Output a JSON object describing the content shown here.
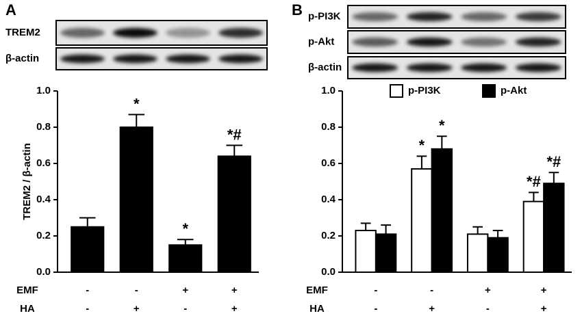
{
  "panels": [
    {
      "label": "A",
      "blots": [
        "TREM2",
        "β-actin"
      ]
    },
    {
      "label": "B",
      "blots": [
        "p-PI3K",
        "p-Akt",
        "β-actin"
      ]
    }
  ],
  "chart_data": [
    {
      "type": "bar",
      "ylabel": "TREM2 / β-actin",
      "ylim": [
        0,
        1
      ],
      "yticks": [
        {
          "value": 0,
          "label": "0.0"
        },
        0.2,
        0.4,
        0.6,
        0.8,
        {
          "value": 1,
          "label": "1.0"
        }
      ],
      "conditions": [
        {
          "name": "EMF",
          "signs": [
            "-",
            "-",
            "+",
            "+"
          ]
        },
        {
          "name": "HA",
          "signs": [
            "-",
            "+",
            "-",
            "+"
          ]
        }
      ],
      "color": "#000000",
      "values": [
        0.25,
        0.8,
        0.15,
        0.64
      ],
      "errors": [
        0.05,
        0.07,
        0.03,
        0.06
      ],
      "annotations": [
        null,
        "*",
        "*",
        "*#"
      ]
    },
    {
      "type": "grouped_bar",
      "ylim": [
        0,
        1
      ],
      "yticks": [
        {
          "value": 0,
          "label": "0.0"
        },
        0.2,
        0.4,
        0.6,
        0.8,
        {
          "value": 1,
          "label": "1.0"
        }
      ],
      "conditions": [
        {
          "name": "EMF",
          "signs": [
            "-",
            "-",
            "+",
            "+"
          ]
        },
        {
          "name": "HA",
          "signs": [
            "-",
            "+",
            "-",
            "+"
          ]
        }
      ],
      "legend": "top",
      "series": [
        {
          "name": "p-PI3K",
          "color": "#ffffff",
          "values": [
            0.23,
            0.57,
            0.21,
            0.39
          ],
          "errors": [
            0.04,
            0.07,
            0.04,
            0.05
          ],
          "annotations": [
            null,
            "*",
            null,
            "*#"
          ]
        },
        {
          "name": "p-Akt",
          "color": "#000000",
          "values": [
            0.21,
            0.68,
            0.19,
            0.49
          ],
          "errors": [
            0.05,
            0.07,
            0.04,
            0.06
          ],
          "annotations": [
            null,
            "*",
            null,
            "*#"
          ]
        }
      ]
    }
  ]
}
